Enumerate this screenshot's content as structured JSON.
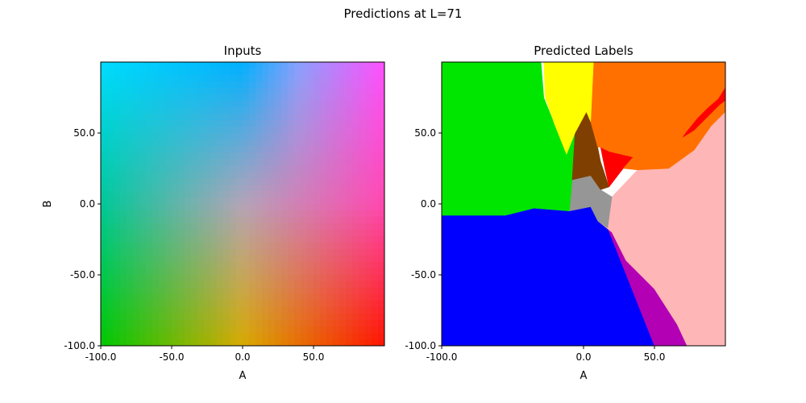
{
  "figure": {
    "suptitle": "Predictions at L=71"
  },
  "chart_data": [
    {
      "type": "heatmap",
      "title": "Inputs",
      "xlabel": "A",
      "ylabel": "B",
      "xlim": [
        -100,
        100
      ],
      "ylim": [
        100,
        -100
      ],
      "xticks": [
        -100,
        -50,
        0,
        50
      ],
      "xtick_labels": [
        "-100.0",
        "-50.0",
        "0.0",
        "50.0"
      ],
      "yticks": [
        -100,
        -50,
        0,
        50
      ],
      "ytick_labels": [
        "-100.0",
        "-50.0",
        "0.0",
        "50.0"
      ],
      "color_samples": [
        {
          "A": -100,
          "B": -100,
          "color": "#00dcff"
        },
        {
          "A": 0,
          "B": -100,
          "color": "#00b0ff"
        },
        {
          "A": 40,
          "B": -100,
          "color": "#8aa0ff"
        },
        {
          "A": 100,
          "B": -100,
          "color": "#ff50ff"
        },
        {
          "A": -100,
          "B": 0,
          "color": "#00c898"
        },
        {
          "A": 0,
          "B": 0,
          "color": "#b4a4b8"
        },
        {
          "A": 100,
          "B": 0,
          "color": "#ff48b0"
        },
        {
          "A": -100,
          "B": 100,
          "color": "#00c800"
        },
        {
          "A": 0,
          "B": 100,
          "color": "#d8aa00"
        },
        {
          "A": 100,
          "B": 100,
          "color": "#ff1400"
        }
      ]
    },
    {
      "type": "heatmap",
      "title": "Predicted Labels",
      "xlabel": "A",
      "xlim": [
        -100,
        100
      ],
      "ylim": [
        100,
        -100
      ],
      "xticks": [
        -100,
        0,
        50
      ],
      "xtick_labels": [
        "-100.0",
        "0.0",
        "50.0"
      ],
      "yticks": [
        -100,
        -50,
        0,
        50
      ],
      "ytick_labels": [
        "-100.0",
        "-50.0",
        "0.0",
        "50.0"
      ],
      "regions": [
        {
          "label": "blue",
          "color": "#0000ff",
          "polygon": [
            [
              -100,
              -100
            ],
            [
              50,
              -100
            ],
            [
              17,
              -17
            ],
            [
              5,
              -2
            ],
            [
              -10,
              -5
            ],
            [
              -35,
              -3
            ],
            [
              -55,
              -8
            ],
            [
              -100,
              -8
            ]
          ]
        },
        {
          "label": "purple",
          "color": "#b400b4",
          "polygon": [
            [
              50,
              -100
            ],
            [
              73,
              -100
            ],
            [
              66,
              -85
            ],
            [
              50,
              -60
            ],
            [
              30,
              -40
            ],
            [
              20,
              -20
            ],
            [
              10,
              -12
            ],
            [
              17,
              -17
            ]
          ]
        },
        {
          "label": "pink",
          "color": "#ffb6b6",
          "polygon": [
            [
              73,
              -100
            ],
            [
              100,
              -100
            ],
            [
              100,
              65
            ],
            [
              90,
              55
            ],
            [
              78,
              38
            ],
            [
              60,
              25
            ],
            [
              38,
              24
            ],
            [
              20,
              5
            ],
            [
              10,
              -12
            ],
            [
              20,
              -20
            ],
            [
              30,
              -40
            ],
            [
              50,
              -60
            ],
            [
              66,
              -85
            ]
          ]
        },
        {
          "label": "gray",
          "color": "#969696",
          "polygon": [
            [
              10,
              -12
            ],
            [
              17,
              -17
            ],
            [
              20,
              5
            ],
            [
              12,
              10
            ],
            [
              5,
              20
            ],
            [
              -8,
              17
            ],
            [
              -10,
              -5
            ],
            [
              5,
              -2
            ]
          ]
        },
        {
          "label": "green",
          "color": "#00e600",
          "polygon": [
            [
              -100,
              -8
            ],
            [
              -55,
              -8
            ],
            [
              -35,
              -3
            ],
            [
              -10,
              -5
            ],
            [
              -8,
              17
            ],
            [
              -6,
              50
            ],
            [
              -12,
              35
            ],
            [
              -20,
              55
            ],
            [
              -28,
              75
            ],
            [
              -30,
              100
            ],
            [
              -100,
              100
            ]
          ]
        },
        {
          "label": "brown",
          "color": "#7f3f00",
          "polygon": [
            [
              -8,
              17
            ],
            [
              5,
              20
            ],
            [
              12,
              10
            ],
            [
              18,
              12
            ],
            [
              12,
              30
            ],
            [
              10,
              40
            ],
            [
              5,
              58
            ],
            [
              2,
              65
            ],
            [
              -6,
              50
            ]
          ]
        },
        {
          "label": "red",
          "color": "#ff0000",
          "polygon": [
            [
              12,
              40
            ],
            [
              15,
              25
            ],
            [
              18,
              12
            ],
            [
              28,
              25
            ],
            [
              35,
              33
            ],
            [
              18,
              37
            ]
          ]
        },
        {
          "label": "orange",
          "color": "#ff7000",
          "polygon": [
            [
              12,
              40
            ],
            [
              18,
              37
            ],
            [
              35,
              33
            ],
            [
              28,
              25
            ],
            [
              38,
              24
            ],
            [
              60,
              25
            ],
            [
              78,
              38
            ],
            [
              90,
              55
            ],
            [
              100,
              65
            ],
            [
              100,
              100
            ],
            [
              7,
              100
            ],
            [
              5,
              58
            ],
            [
              10,
              40
            ]
          ]
        },
        {
          "label": "red",
          "color": "#ff0000",
          "polygon": [
            [
              70,
              47
            ],
            [
              78,
              52
            ],
            [
              88,
              62
            ],
            [
              96,
              70
            ],
            [
              100,
              73
            ],
            [
              100,
              82
            ],
            [
              95,
              74
            ],
            [
              88,
              68
            ],
            [
              80,
              60
            ],
            [
              72,
              50
            ]
          ]
        },
        {
          "label": "yellow",
          "color": "#ffff00",
          "polygon": [
            [
              -6,
              50
            ],
            [
              2,
              65
            ],
            [
              5,
              58
            ],
            [
              7,
              100
            ],
            [
              -28,
              100
            ],
            [
              -27,
              75
            ],
            [
              -20,
              55
            ],
            [
              -12,
              35
            ]
          ]
        }
      ]
    }
  ]
}
